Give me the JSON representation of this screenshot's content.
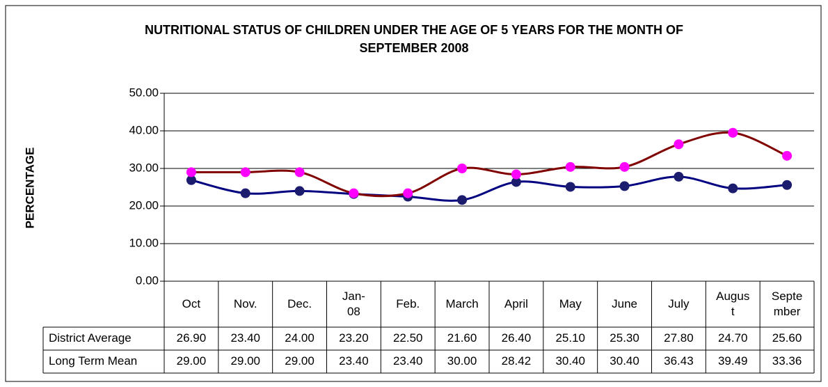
{
  "chart_data": {
    "type": "line",
    "title": "NUTRITIONAL STATUS OF CHILDREN UNDER THE AGE OF 5 YEARS FOR THE MONTH OF SEPTEMBER 2008",
    "y_label": "PERCENTAGE",
    "categories": [
      "Oct",
      "Nov.",
      "Dec.",
      "Jan-08",
      "Feb.",
      "March",
      "April",
      "May",
      "June",
      "July",
      "August",
      "September"
    ],
    "series": [
      {
        "name": "District Average",
        "color": "#000080",
        "marker_color": "#1c1c6e",
        "values": [
          26.9,
          23.4,
          24.0,
          23.2,
          22.5,
          21.6,
          26.4,
          25.1,
          25.3,
          27.8,
          24.7,
          25.6
        ],
        "value_labels": [
          "26.90",
          "23.40",
          "24.00",
          "23.20",
          "22.50",
          "21.60",
          "26.40",
          "25.10",
          "25.30",
          "27.80",
          "24.70",
          "25.60"
        ]
      },
      {
        "name": "Long Term Mean",
        "color": "#800000",
        "marker_color": "#ff00ff",
        "values": [
          29.0,
          29.0,
          29.0,
          23.4,
          23.4,
          30.0,
          28.42,
          30.4,
          30.4,
          36.43,
          39.49,
          33.36
        ],
        "value_labels": [
          "29.00",
          "29.00",
          "29.00",
          "23.40",
          "23.40",
          "30.00",
          "28.42",
          "30.40",
          "30.40",
          "36.43",
          "39.49",
          "33.36"
        ]
      }
    ],
    "ylim": [
      0,
      50
    ],
    "yticks": [
      {
        "value": 0,
        "label": "0.00"
      },
      {
        "value": 10,
        "label": "10.00"
      },
      {
        "value": 20,
        "label": "20.00"
      },
      {
        "value": 30,
        "label": "30.00"
      },
      {
        "value": 40,
        "label": "40.00"
      },
      {
        "value": 50,
        "label": "50.00"
      }
    ],
    "grid": true,
    "smooth": true
  }
}
